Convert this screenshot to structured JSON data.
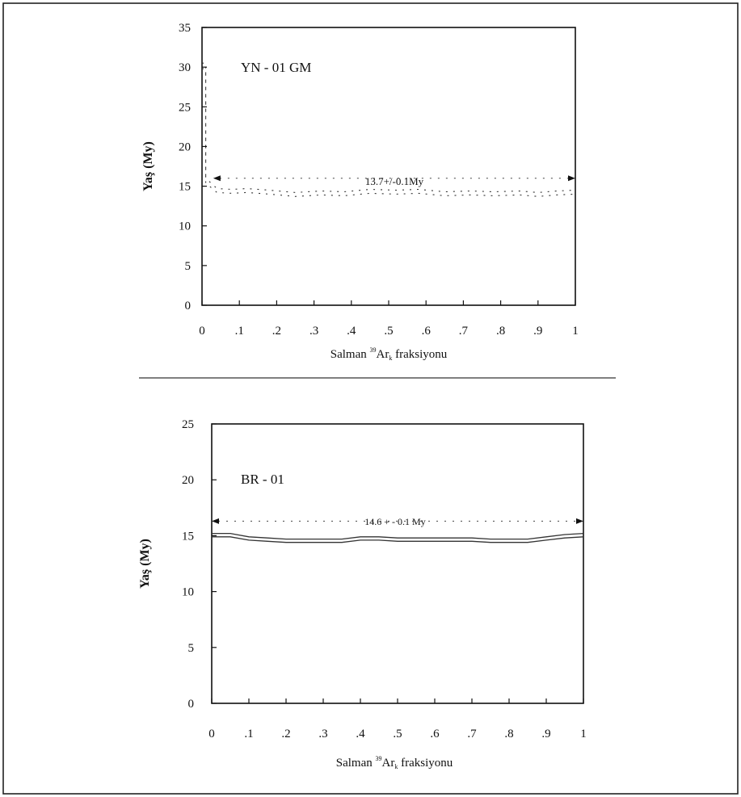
{
  "chart_data": [
    {
      "type": "line",
      "sample_label": "YN - 01 GM",
      "plateau_label": "13.7+/-0.1My",
      "xlabel": {
        "pre": "Salman ",
        "sup": "39",
        "mid": "Ar",
        "sub": "k",
        "post": " fraksiyonu"
      },
      "ylabel": "Yaş (My)",
      "xlim": [
        0,
        1
      ],
      "ylim": [
        0,
        35
      ],
      "x_ticks": [
        "0",
        ".1",
        ".2",
        ".3",
        ".4",
        ".5",
        ".6",
        ".7",
        ".8",
        ".9",
        "1"
      ],
      "y_ticks": [
        "0",
        "5",
        "10",
        "15",
        "20",
        "25",
        "30",
        "35"
      ],
      "plateau": {
        "x_start": 0.03,
        "x_end": 1.0,
        "age": 16.0
      },
      "series": [
        {
          "style": "upper",
          "x": [
            0.0,
            0.01,
            0.01,
            0.04,
            0.08,
            0.12,
            0.18,
            0.25,
            0.32,
            0.38,
            0.45,
            0.52,
            0.58,
            0.65,
            0.72,
            0.78,
            0.85,
            0.9,
            0.95,
            1.0
          ],
          "y": [
            30.5,
            30.5,
            16.0,
            14.7,
            14.6,
            14.7,
            14.5,
            14.2,
            14.4,
            14.3,
            14.6,
            14.5,
            14.6,
            14.3,
            14.4,
            14.3,
            14.4,
            14.2,
            14.4,
            14.5
          ]
        },
        {
          "style": "lower",
          "x": [
            0.0,
            0.01,
            0.01,
            0.04,
            0.08,
            0.12,
            0.18,
            0.25,
            0.32,
            0.38,
            0.45,
            0.52,
            0.58,
            0.65,
            0.72,
            0.78,
            0.85,
            0.9,
            0.95,
            1.0
          ],
          "y": [
            29.8,
            29.8,
            15.4,
            14.2,
            14.1,
            14.2,
            14.0,
            13.7,
            13.9,
            13.8,
            14.1,
            14.0,
            14.1,
            13.8,
            13.9,
            13.8,
            13.9,
            13.7,
            13.9,
            14.0
          ]
        }
      ]
    },
    {
      "type": "line",
      "sample_label": "BR - 01",
      "plateau_label": "14.6 + - 0.1 My",
      "xlabel": {
        "pre": "Salman ",
        "sup": "39",
        "mid": "Ar",
        "sub": "k",
        "post": " fraksiyonu"
      },
      "ylabel": "Yaş (My)",
      "xlim": [
        0,
        1
      ],
      "ylim": [
        0,
        25
      ],
      "x_ticks": [
        "0",
        ".1",
        ".2",
        ".3",
        ".4",
        ".5",
        ".6",
        ".7",
        ".8",
        ".9",
        "1"
      ],
      "y_ticks": [
        "0",
        "5",
        "10",
        "15",
        "20",
        "25"
      ],
      "plateau": {
        "x_start": 0.0,
        "x_end": 1.0,
        "age": 16.3
      },
      "series": [
        {
          "style": "upper",
          "x": [
            0.0,
            0.05,
            0.1,
            0.15,
            0.2,
            0.25,
            0.3,
            0.35,
            0.4,
            0.45,
            0.5,
            0.55,
            0.6,
            0.65,
            0.7,
            0.75,
            0.8,
            0.85,
            0.9,
            0.95,
            1.0
          ],
          "y": [
            15.2,
            15.2,
            14.9,
            14.8,
            14.7,
            14.7,
            14.7,
            14.7,
            14.9,
            14.9,
            14.8,
            14.8,
            14.8,
            14.8,
            14.8,
            14.7,
            14.7,
            14.7,
            14.9,
            15.1,
            15.2
          ]
        },
        {
          "style": "lower",
          "x": [
            0.0,
            0.05,
            0.1,
            0.15,
            0.2,
            0.25,
            0.3,
            0.35,
            0.4,
            0.45,
            0.5,
            0.55,
            0.6,
            0.65,
            0.7,
            0.75,
            0.8,
            0.85,
            0.9,
            0.95,
            1.0
          ],
          "y": [
            14.9,
            14.9,
            14.6,
            14.5,
            14.4,
            14.4,
            14.4,
            14.4,
            14.6,
            14.6,
            14.5,
            14.5,
            14.5,
            14.5,
            14.5,
            14.4,
            14.4,
            14.4,
            14.6,
            14.8,
            14.9
          ]
        }
      ]
    }
  ]
}
